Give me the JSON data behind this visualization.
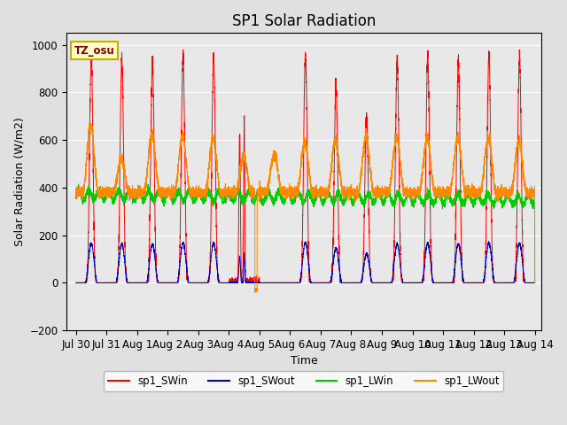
{
  "title": "SP1 Solar Radiation",
  "ylabel": "Solar Radiation (W/m2)",
  "xlabel": "Time",
  "ylim": [
    -200,
    1050
  ],
  "timezone_label": "TZ_osu",
  "xtick_labels": [
    "Jul 30",
    "Jul 31",
    "Aug 1",
    "Aug 2",
    "Aug 3",
    "Aug 4",
    "Aug 5",
    "Aug 6",
    "Aug 7",
    "Aug 8",
    "Aug 9",
    "Aug 10",
    "Aug 11",
    "Aug 12",
    "Aug 13",
    "Aug 14"
  ],
  "series_colors": {
    "SWin": "#ff0000",
    "SWout": "#0000cc",
    "LWin": "#00cc00",
    "LWout": "#ff8800"
  },
  "series_labels": [
    "sp1_SWin",
    "sp1_SWout",
    "sp1_LWin",
    "sp1_LWout"
  ],
  "background_color": "#e8e8e8",
  "grid_color": "#ffffff",
  "title_fontsize": 12,
  "label_fontsize": 9,
  "num_days": 15,
  "pts_per_day": 480
}
